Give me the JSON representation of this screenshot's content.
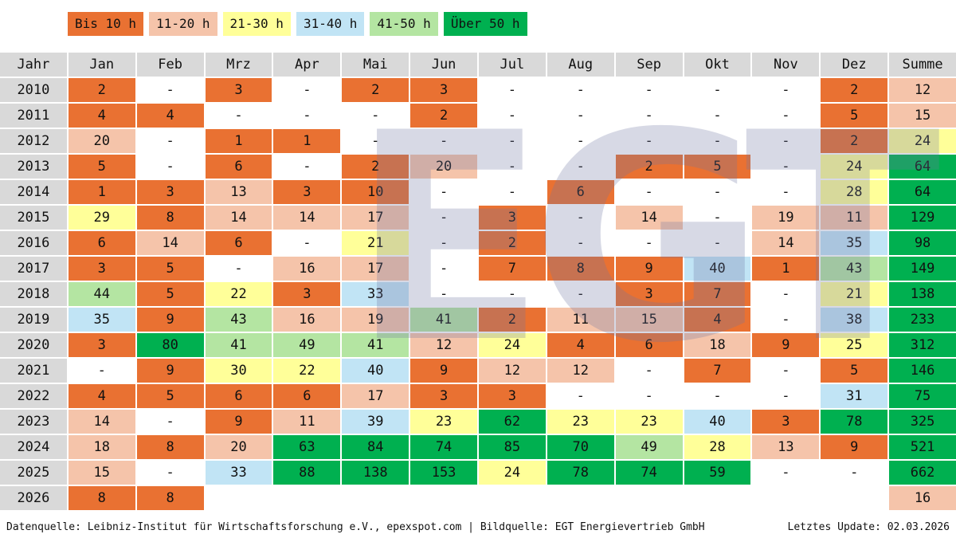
{
  "legend": [
    {
      "label": "Bis 10 h",
      "color": "#E97132"
    },
    {
      "label": "11-20 h",
      "color": "#F5C4AA"
    },
    {
      "label": "21-30 h",
      "color": "#FFFF99"
    },
    {
      "label": "31-40 h",
      "color": "#C1E4F5"
    },
    {
      "label": "41-50 h",
      "color": "#B4E5A2"
    },
    {
      "label": "Über 50 h",
      "color": "#00B050"
    }
  ],
  "chart_data": {
    "type": "heatmap",
    "columns": [
      "Jahr",
      "Jan",
      "Feb",
      "Mrz",
      "Apr",
      "Mai",
      "Jun",
      "Jul",
      "Aug",
      "Sep",
      "Okt",
      "Nov",
      "Dez",
      "Summe"
    ],
    "rows": [
      {
        "year": "2010",
        "values": [
          2,
          "-",
          3,
          "-",
          2,
          3,
          "-",
          "-",
          "-",
          "-",
          "-",
          2
        ],
        "sum": 12
      },
      {
        "year": "2011",
        "values": [
          4,
          4,
          "-",
          "-",
          "-",
          2,
          "-",
          "-",
          "-",
          "-",
          "-",
          5
        ],
        "sum": 15
      },
      {
        "year": "2012",
        "values": [
          20,
          "-",
          1,
          1,
          "-",
          "-",
          "-",
          "-",
          "-",
          "-",
          "-",
          2
        ],
        "sum": 24
      },
      {
        "year": "2013",
        "values": [
          5,
          "-",
          6,
          "-",
          2,
          20,
          "-",
          "-",
          2,
          5,
          "-",
          24
        ],
        "sum": 64
      },
      {
        "year": "2014",
        "values": [
          1,
          3,
          13,
          3,
          10,
          "-",
          "-",
          6,
          "-",
          "-",
          "-",
          28
        ],
        "sum": 64
      },
      {
        "year": "2015",
        "values": [
          29,
          8,
          14,
          14,
          17,
          "-",
          3,
          "-",
          14,
          "-",
          19,
          11
        ],
        "sum": 129
      },
      {
        "year": "2016",
        "values": [
          6,
          14,
          6,
          "-",
          21,
          "-",
          2,
          "-",
          "-",
          "-",
          14,
          35
        ],
        "sum": 98
      },
      {
        "year": "2017",
        "values": [
          3,
          5,
          "-",
          16,
          17,
          "-",
          7,
          8,
          9,
          40,
          1,
          43
        ],
        "sum": 149
      },
      {
        "year": "2018",
        "values": [
          44,
          5,
          22,
          3,
          33,
          "-",
          "-",
          "-",
          3,
          7,
          "-",
          21
        ],
        "sum": 138
      },
      {
        "year": "2019",
        "values": [
          35,
          9,
          43,
          16,
          19,
          41,
          2,
          11,
          15,
          4,
          "-",
          38
        ],
        "sum": 233
      },
      {
        "year": "2020",
        "values": [
          3,
          80,
          41,
          49,
          41,
          12,
          24,
          4,
          6,
          18,
          9,
          25
        ],
        "sum": 312
      },
      {
        "year": "2021",
        "values": [
          "-",
          9,
          30,
          22,
          40,
          9,
          12,
          12,
          "-",
          7,
          "-",
          5
        ],
        "sum": 146
      },
      {
        "year": "2022",
        "values": [
          4,
          5,
          6,
          6,
          17,
          3,
          3,
          "-",
          "-",
          "-",
          "-",
          31
        ],
        "sum": 75
      },
      {
        "year": "2023",
        "values": [
          14,
          "-",
          9,
          11,
          39,
          23,
          62,
          23,
          23,
          40,
          3,
          78
        ],
        "sum": 325
      },
      {
        "year": "2024",
        "values": [
          18,
          8,
          20,
          63,
          84,
          74,
          85,
          70,
          49,
          28,
          13,
          9
        ],
        "sum": 521
      },
      {
        "year": "2025",
        "values": [
          15,
          "-",
          33,
          88,
          138,
          153,
          24,
          78,
          74,
          59,
          "-",
          "-"
        ],
        "sum": 662
      },
      {
        "year": "2026",
        "values": [
          8,
          8,
          null,
          null,
          null,
          null,
          null,
          null,
          null,
          null,
          null,
          null
        ],
        "sum": 16
      }
    ],
    "header_color": "#D9D9D9"
  },
  "watermark": "EGT",
  "footer": {
    "source": "Datenquelle: Leibniz-Institut für Wirtschaftsforschung e.V., epexspot.com | Bildquelle: EGT Energievertrieb GmbH",
    "update": "Letztes Update: 02.03.2026"
  }
}
